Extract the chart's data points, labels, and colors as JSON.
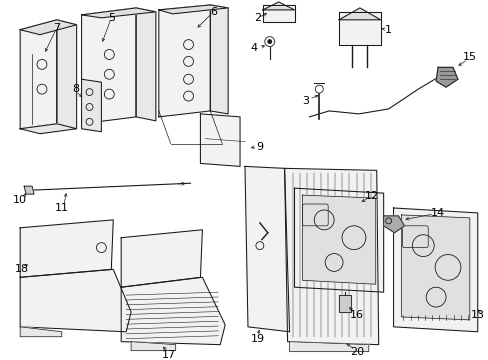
{
  "bg_color": "#ffffff",
  "line_color": "#1a1a1a",
  "label_color": "#000000",
  "lw": 0.75,
  "seat_fill": "#f2f2f2",
  "seat_fill2": "#e8e8e8",
  "panel_fill": "#efefef"
}
